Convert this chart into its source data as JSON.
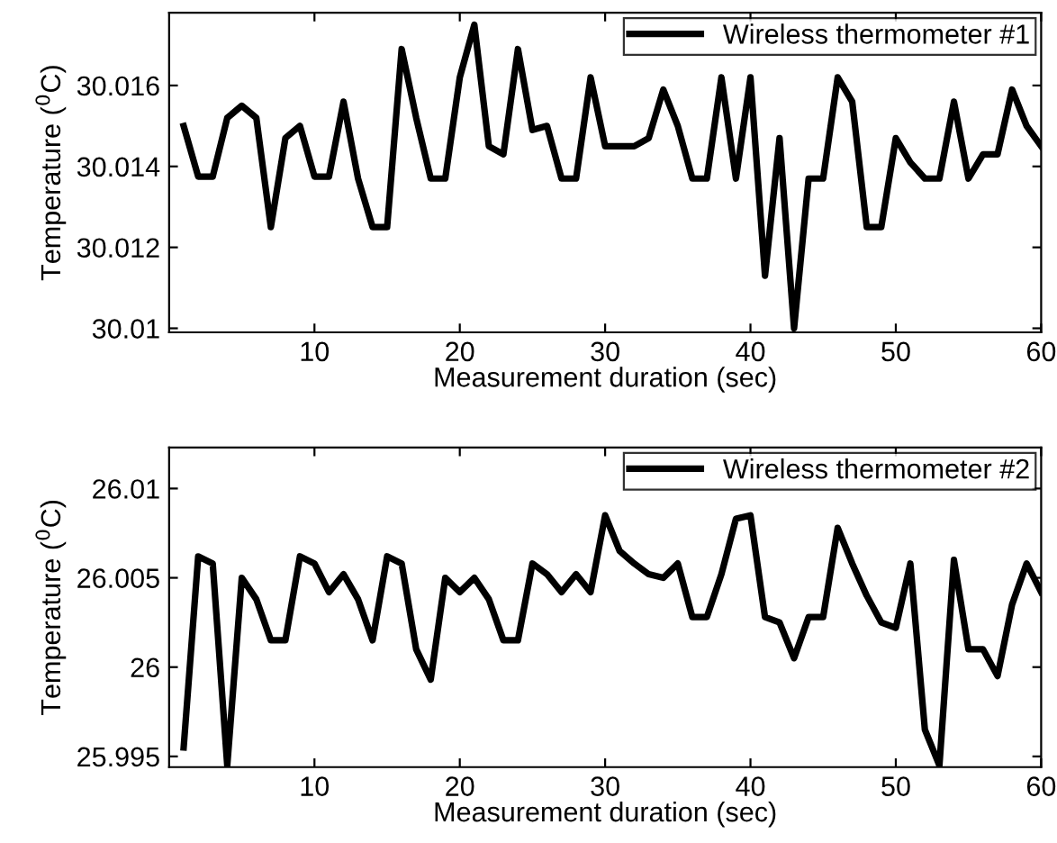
{
  "chart_data": [
    {
      "type": "line",
      "xlabel": "Measurement duration (sec)",
      "ylabel": "Temperature ($^{0}$C)",
      "xlim": [
        0,
        60
      ],
      "xticks": [
        10,
        20,
        30,
        40,
        50,
        60
      ],
      "ylim": [
        30.0099,
        30.0178
      ],
      "yticks": [
        30.01,
        30.012,
        30.014,
        30.016
      ],
      "legend": "top right",
      "grid": false,
      "x": [
        1,
        2,
        3,
        4,
        5,
        6,
        7,
        8,
        9,
        10,
        11,
        12,
        13,
        14,
        15,
        16,
        17,
        18,
        19,
        20,
        21,
        22,
        23,
        24,
        25,
        26,
        27,
        28,
        29,
        30,
        31,
        32,
        33,
        34,
        35,
        36,
        37,
        38,
        39,
        40,
        41,
        42,
        43,
        44,
        45,
        46,
        47,
        48,
        49,
        50,
        51,
        52,
        53,
        54,
        55,
        56,
        57,
        58,
        59,
        60
      ],
      "series": [
        {
          "name": "Wireless thermometer #1",
          "color": "#000000",
          "values": [
            30.015,
            30.01375,
            30.01375,
            30.0152,
            30.0155,
            30.0152,
            30.0125,
            30.0147,
            30.015,
            30.01375,
            30.01375,
            30.0156,
            30.0137,
            30.0125,
            30.0125,
            30.0169,
            30.0152,
            30.0137,
            30.0137,
            30.0162,
            30.0175,
            30.0145,
            30.0143,
            30.0169,
            30.0149,
            30.015,
            30.0137,
            30.0137,
            30.0162,
            30.0145,
            30.0145,
            30.0145,
            30.0147,
            30.0159,
            30.015,
            30.0137,
            30.0137,
            30.0162,
            30.0137,
            30.0162,
            30.0113,
            30.0147,
            30.01,
            30.0137,
            30.0137,
            30.0162,
            30.0156,
            30.0125,
            30.0125,
            30.0147,
            30.0141,
            30.0137,
            30.0137,
            30.0156,
            30.0137,
            30.0143,
            30.0143,
            30.0159,
            30.015,
            30.0145
          ]
        }
      ]
    },
    {
      "type": "line",
      "xlabel": "Measurement duration (sec)",
      "ylabel": "Temperature ($^{0}$C)",
      "xlim": [
        0,
        60
      ],
      "xticks": [
        10,
        20,
        30,
        40,
        50,
        60
      ],
      "ylim": [
        25.9944,
        26.0123
      ],
      "yticks": [
        25.995,
        26,
        26.005,
        26.01
      ],
      "legend": "top right",
      "grid": false,
      "x": [
        1,
        2,
        3,
        4,
        5,
        6,
        7,
        8,
        9,
        10,
        11,
        12,
        13,
        14,
        15,
        16,
        17,
        18,
        19,
        20,
        21,
        22,
        23,
        24,
        25,
        26,
        27,
        28,
        29,
        30,
        31,
        32,
        33,
        34,
        35,
        36,
        37,
        38,
        39,
        40,
        41,
        42,
        43,
        44,
        45,
        46,
        47,
        48,
        49,
        50,
        51,
        52,
        53,
        54,
        55,
        56,
        57,
        58,
        59,
        60
      ],
      "series": [
        {
          "name": "Wireless thermometer #2",
          "color": "#000000",
          "values": [
            25.9955,
            26.0062,
            26.0058,
            25.9945,
            26.005,
            26.0038,
            26.0015,
            26.0015,
            26.0062,
            26.0058,
            26.0042,
            26.0052,
            26.0038,
            26.0015,
            26.0062,
            26.0058,
            26.001,
            25.9993,
            26.005,
            26.0042,
            26.005,
            26.0038,
            26.0015,
            26.0015,
            26.0058,
            26.0052,
            26.0042,
            26.0052,
            26.0042,
            26.0085,
            26.0065,
            26.0058,
            26.0052,
            26.005,
            26.0058,
            26.0028,
            26.0028,
            26.0052,
            26.0083,
            26.0085,
            26.0028,
            26.0025,
            26.0005,
            26.0028,
            26.0028,
            26.0078,
            26.0058,
            26.004,
            26.0025,
            26.0022,
            26.0058,
            25.9965,
            25.9945,
            26.006,
            26.001,
            26.001,
            25.9995,
            26.0035,
            26.0058,
            26.0042
          ]
        }
      ]
    }
  ]
}
